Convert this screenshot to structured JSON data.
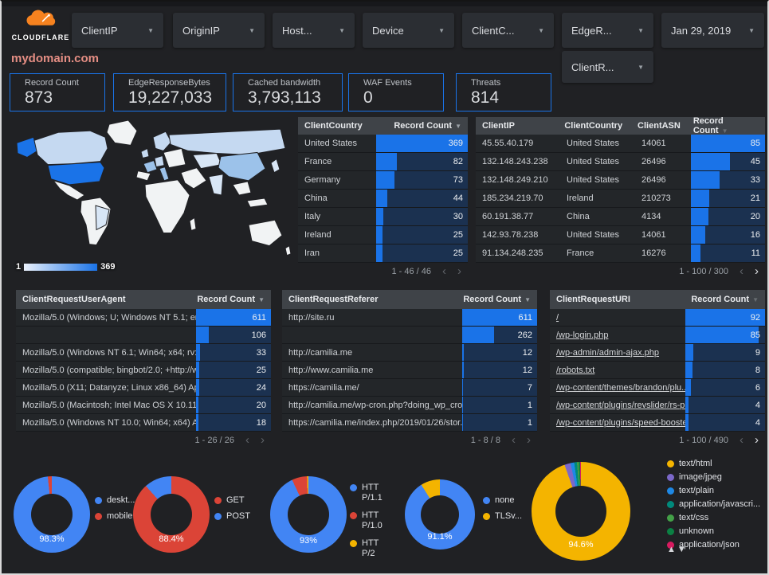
{
  "theme": {
    "bg": "#202124",
    "chip": "#2b2e33",
    "header": "#3f4348",
    "row": "#232629",
    "navy": "#1b3150",
    "bar": "#1a73e8",
    "accent": "#1a73e8",
    "title": "#e58e84",
    "map-base": "#f1f3f4",
    "map-l1": "#d8e6f6",
    "map-l2": "#c5d9f1",
    "map-l3": "#9cc2ea",
    "map-hi": "#1a73e8",
    "logo-orange": "#f6821f"
  },
  "topbar": {
    "logo_text": "CLOUDFLARE",
    "filters": [
      {
        "label": "ClientIP"
      },
      {
        "label": "OriginIP"
      },
      {
        "label": "Host..."
      },
      {
        "label": "Device"
      },
      {
        "label": "ClientC..."
      },
      {
        "label": "EdgeR..."
      }
    ],
    "date_filter": "Jan 29, 2019",
    "filter_row2": "ClientR...",
    "dropdown_arrow": "▼"
  },
  "page_title": "mydomain.com",
  "scorecards": [
    {
      "label": "Record Count",
      "value": "873"
    },
    {
      "label": "EdgeResponseBytes",
      "value": "19,227,033"
    },
    {
      "label": "Cached bandwidth",
      "value": "3,793,113"
    },
    {
      "label": "WAF Events",
      "value": "0"
    },
    {
      "label": "Threats",
      "value": "814"
    }
  ],
  "map": {
    "legend_min": "1",
    "legend_max": "369"
  },
  "tables": {
    "country": {
      "headers": {
        "col1": "ClientCountry",
        "col2": "Record Count"
      },
      "rows": [
        {
          "label": "United States",
          "value": 369
        },
        {
          "label": "France",
          "value": 82
        },
        {
          "label": "Germany",
          "value": 73
        },
        {
          "label": "China",
          "value": 44
        },
        {
          "label": "Italy",
          "value": 30
        },
        {
          "label": "Ireland",
          "value": 25
        },
        {
          "label": "Iran",
          "value": 25
        }
      ],
      "pagination": "1 - 46 / 46",
      "prev_on": "0",
      "next_on": "0"
    },
    "ip": {
      "headers": {
        "col1": "ClientIP",
        "col2": "ClientCountry",
        "col3": "ClientASN",
        "col4": "Record Count"
      },
      "rows": [
        {
          "ip": "45.55.40.179",
          "country": "United States",
          "asn": "14061",
          "value": 85
        },
        {
          "ip": "132.148.243.238",
          "country": "United States",
          "asn": "26496",
          "value": 45
        },
        {
          "ip": "132.148.249.210",
          "country": "United States",
          "asn": "26496",
          "value": 33
        },
        {
          "ip": "185.234.219.70",
          "country": "Ireland",
          "asn": "210273",
          "value": 21
        },
        {
          "ip": "60.191.38.77",
          "country": "China",
          "asn": "4134",
          "value": 20
        },
        {
          "ip": "142.93.78.238",
          "country": "United States",
          "asn": "14061",
          "value": 16
        },
        {
          "ip": "91.134.248.235",
          "country": "France",
          "asn": "16276",
          "value": 11
        }
      ],
      "pagination": "1 - 100 / 300",
      "prev_on": "0",
      "next_on": "1"
    },
    "useragent": {
      "headers": {
        "col1": "ClientRequestUserAgent",
        "col2": "Record Count"
      },
      "rows": [
        {
          "label": "Mozilla/5.0 (Windows; U; Windows NT 5.1; en-U...",
          "value": 611
        },
        {
          "label": "",
          "value": 106
        },
        {
          "label": "Mozilla/5.0 (Windows NT 6.1; Win64; x64; rv:64...",
          "value": 33
        },
        {
          "label": "Mozilla/5.0 (compatible; bingbot/2.0; +http://w...",
          "value": 25
        },
        {
          "label": "Mozilla/5.0 (X11; Datanyze; Linux x86_64) Appl...",
          "value": 24
        },
        {
          "label": "Mozilla/5.0 (Macintosh; Intel Mac OS X 10.11; r...",
          "value": 20
        },
        {
          "label": "Mozilla/5.0 (Windows NT 10.0; Win64; x64) App...",
          "value": 18
        }
      ],
      "pagination": "1 - 26 / 26",
      "prev_on": "0",
      "next_on": "0"
    },
    "referer": {
      "headers": {
        "col1": "ClientRequestReferer",
        "col2": "Record Count"
      },
      "rows": [
        {
          "label": "http://site.ru",
          "value": 611
        },
        {
          "label": "",
          "value": 262
        },
        {
          "label": "http://camilia.me",
          "value": 12
        },
        {
          "label": "http://www.camilia.me",
          "value": 12
        },
        {
          "label": "https://camilia.me/",
          "value": 7
        },
        {
          "label": "http://camilia.me/wp-cron.php?doing_wp_cron...",
          "value": 1
        },
        {
          "label": "https://camilia.me/index.php/2019/01/26/stor...",
          "value": 1
        }
      ],
      "pagination": "1 - 8 / 8",
      "prev_on": "0",
      "next_on": "0"
    },
    "uri": {
      "headers": {
        "col1": "ClientRequestURI",
        "col2": "Record Count"
      },
      "rows": [
        {
          "label": "/",
          "value": 92
        },
        {
          "label": "/wp-login.php",
          "value": 85
        },
        {
          "label": "/wp-admin/admin-ajax.php",
          "value": 9
        },
        {
          "label": "/robots.txt",
          "value": 8
        },
        {
          "label": "/wp-content/themes/brandon/plu...",
          "value": 6
        },
        {
          "label": "/wp-content/plugins/revslider/rs-p...",
          "value": 4
        },
        {
          "label": "/wp-content/plugins/speed-booste...",
          "value": 4
        }
      ],
      "pagination": "1 - 100 / 490",
      "prev_on": "0",
      "next_on": "1"
    }
  },
  "donuts": [
    {
      "name": "device",
      "center_label": "98.3%",
      "slices": [
        {
          "label": "deskt...",
          "pct": 98.3,
          "color": "#4285f4"
        },
        {
          "label": "mobile",
          "pct": 1.7,
          "color": "#db4437"
        }
      ]
    },
    {
      "name": "request-method",
      "center_label": "88.4%",
      "slices": [
        {
          "label": "GET",
          "pct": 88.4,
          "color": "#db4437"
        },
        {
          "label": "POST",
          "pct": 11.6,
          "color": "#4285f4"
        }
      ]
    },
    {
      "name": "http-protocol",
      "center_label": "93%",
      "slices": [
        {
          "label": "HTTP/1.1",
          "pct": 93,
          "color": "#4285f4"
        },
        {
          "label": "HTTP/1.0",
          "pct": 6.4,
          "color": "#db4437"
        },
        {
          "label": "HTTP/2",
          "pct": 0.6,
          "color": "#f4b400"
        }
      ]
    },
    {
      "name": "tls-version",
      "center_label": "91.1%",
      "slices": [
        {
          "label": "none",
          "pct": 91.1,
          "color": "#4285f4"
        },
        {
          "label": "TLSv...",
          "pct": 8.9,
          "color": "#f4b400"
        }
      ]
    },
    {
      "name": "content-type",
      "center_label": "94.6%",
      "sort_up": "▲",
      "sort_down": "▼",
      "slices": [
        {
          "label": "text/html",
          "pct": 94.6,
          "color": "#f4b400"
        },
        {
          "label": "image/jpeg",
          "pct": 2.0,
          "color": "#7b68c9"
        },
        {
          "label": "text/plain",
          "pct": 1.2,
          "color": "#1e88e5"
        },
        {
          "label": "application/javascri...",
          "pct": 0.9,
          "color": "#00897b"
        },
        {
          "label": "text/css",
          "pct": 0.6,
          "color": "#43a047"
        },
        {
          "label": "unknown",
          "pct": 0.4,
          "color": "#0b8043"
        },
        {
          "label": "application/json",
          "pct": 0.3,
          "color": "#d81b60"
        }
      ]
    }
  ],
  "pagination_icons": {
    "prev": "‹",
    "next": "›"
  }
}
